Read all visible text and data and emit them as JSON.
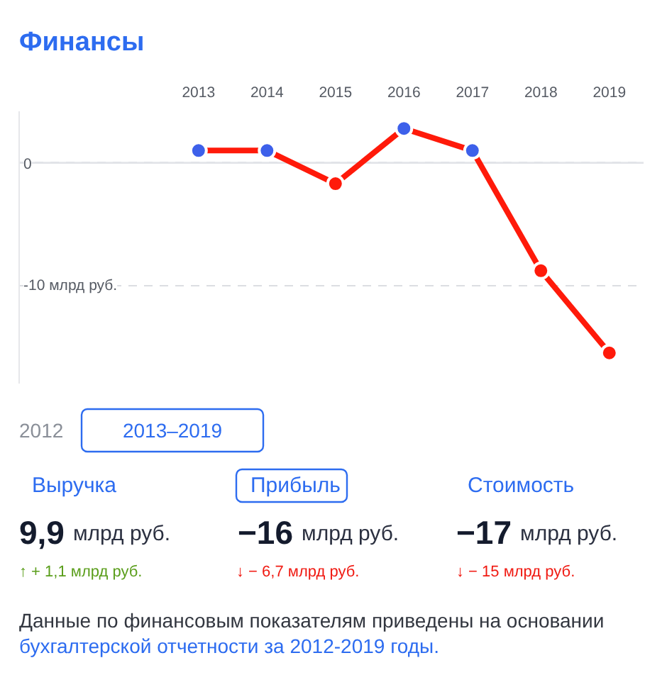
{
  "chart_data": [
    {
      "type": "line",
      "title": "Финансы",
      "x": [
        2013,
        2014,
        2015,
        2016,
        2017,
        2018,
        2019
      ],
      "series": [
        {
          "color": "#ff1a0a",
          "colors": [
            "#3d60ea",
            "#3d60ea",
            "#ff1a0a",
            "#3d60ea",
            "#3d60ea",
            "#ff1a0a",
            "#ff1a0a"
          ],
          "values": [
            1.0,
            1.0,
            -1.7,
            2.8,
            1.0,
            -8.8,
            -15.5
          ]
        }
      ],
      "xlim": [
        2010.38,
        2019.5
      ],
      "xticks": [
        2013,
        2014,
        2015,
        2016,
        2017,
        2018,
        2019
      ],
      "ylim": [
        -18,
        4.2
      ],
      "yticks": [
        0,
        {
          "value": -10,
          "label": "-10 млрд руб."
        }
      ],
      "grid": "y",
      "ref_lines": [
        {
          "axis": "y",
          "value": 0,
          "color": "#e2e4e8"
        }
      ],
      "marker": "circle"
    },
    {
      "type": "other",
      "annotations": [
        "2012",
        "2013–2019",
        "Выручка",
        "Прибыль",
        "Стоимость",
        "9,9",
        "млрд руб.",
        "−16",
        "млрд руб.",
        "−17",
        "млрд руб.",
        "↑ + 1,1 млрд руб.",
        "↓ − 6,7 млрд руб.",
        "↓ − 15 млрд руб.",
        "Данные по финансовым показателям приведены на основании",
        "бухгалтерской отчетности за 2012-2019 годы."
      ]
    }
  ]
}
